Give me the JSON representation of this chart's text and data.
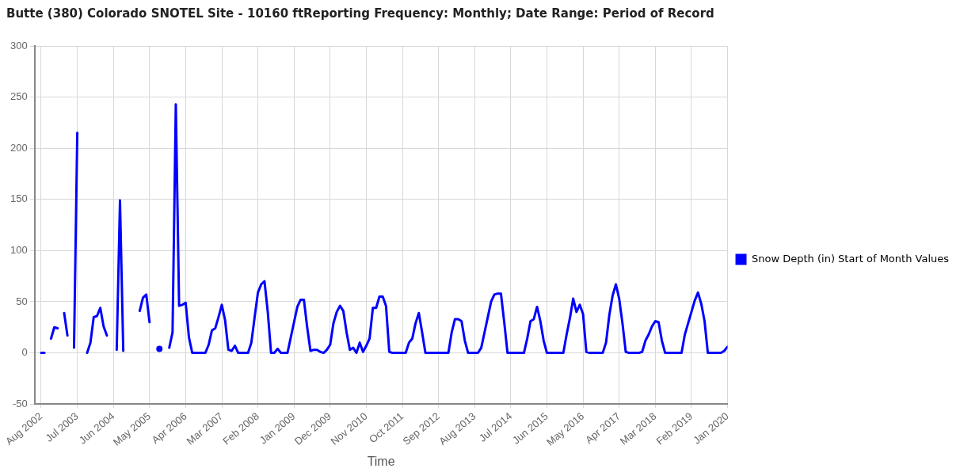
{
  "chart_data": {
    "type": "line",
    "title": "Butte (380) Colorado  SNOTEL Site - 10160 ftReporting Frequency: Monthly; Date Range: Period of Record",
    "xlabel": "Time",
    "categories": [
      "Aug 2002",
      null,
      null,
      null,
      null,
      null,
      null,
      null,
      null,
      null,
      null,
      "Jul 2003",
      null,
      null,
      null,
      null,
      null,
      null,
      null,
      null,
      null,
      null,
      "Jun 2004",
      null,
      null,
      null,
      null,
      null,
      null,
      null,
      null,
      null,
      null,
      "May 2005",
      null,
      null,
      null,
      null,
      null,
      null,
      null,
      null,
      null,
      null,
      "Apr 2006",
      null,
      null,
      null,
      null,
      null,
      null,
      null,
      null,
      null,
      null,
      "Mar 2007",
      null,
      null,
      null,
      null,
      null,
      null,
      null,
      null,
      null,
      null,
      "Feb 2008",
      null,
      null,
      null,
      null,
      null,
      null,
      null,
      null,
      null,
      null,
      "Jan 2009",
      null,
      null,
      null,
      null,
      null,
      null,
      null,
      null,
      null,
      null,
      "Dec 2009",
      null,
      null,
      null,
      null,
      null,
      null,
      null,
      null,
      null,
      null,
      "Nov 2010",
      null,
      null,
      null,
      null,
      null,
      null,
      null,
      null,
      null,
      null,
      "Oct 2011",
      null,
      null,
      null,
      null,
      null,
      null,
      null,
      null,
      null,
      null,
      "Sep 2012",
      null,
      null,
      null,
      null,
      null,
      null,
      null,
      null,
      null,
      null,
      "Aug 2013",
      null,
      null,
      null,
      null,
      null,
      null,
      null,
      null,
      null,
      null,
      "Jul 2014",
      null,
      null,
      null,
      null,
      null,
      null,
      null,
      null,
      null,
      null,
      "Jun 2015",
      null,
      null,
      null,
      null,
      null,
      null,
      null,
      null,
      null,
      null,
      "May 2016",
      null,
      null,
      null,
      null,
      null,
      null,
      null,
      null,
      null,
      null,
      "Apr 2017",
      null,
      null,
      null,
      null,
      null,
      null,
      null,
      null,
      null,
      null,
      "Mar 2018",
      null,
      null,
      null,
      null,
      null,
      null,
      null,
      null,
      null,
      null,
      "Feb 2019",
      null,
      null,
      null,
      null,
      null,
      null,
      null,
      null,
      null,
      null,
      "Jan 2020"
    ],
    "series": [
      {
        "name": "Snow Depth (in) Start of Month Values",
        "color": "#0000ff",
        "values": [
          0,
          0,
          null,
          14,
          25,
          24,
          null,
          39,
          17,
          null,
          5,
          215,
          null,
          null,
          0,
          10,
          35,
          36,
          44,
          26,
          17,
          null,
          null,
          3,
          149,
          2,
          null,
          null,
          null,
          null,
          41,
          54,
          57,
          30,
          null,
          null,
          4,
          null,
          null,
          5,
          20,
          243,
          46,
          47,
          49,
          15,
          0,
          0,
          0,
          0,
          0,
          8,
          22,
          24,
          35,
          47,
          32,
          3,
          2,
          7,
          0,
          0,
          0,
          0,
          10,
          35,
          59,
          67,
          70,
          40,
          0,
          0,
          4,
          0,
          0,
          0,
          15,
          30,
          45,
          52,
          52,
          25,
          2,
          3,
          3,
          1,
          0,
          3,
          8,
          29,
          40,
          46,
          41,
          20,
          3,
          5,
          0,
          10,
          1,
          7,
          14,
          44,
          44,
          55,
          55,
          46,
          1,
          0,
          0,
          0,
          0,
          0,
          10,
          14,
          29,
          39,
          20,
          0,
          0,
          0,
          0,
          0,
          0,
          0,
          0,
          20,
          33,
          33,
          31,
          12,
          0,
          0,
          0,
          0,
          5,
          20,
          35,
          50,
          57,
          58,
          58,
          30,
          0,
          0,
          0,
          0,
          0,
          0,
          14,
          31,
          33,
          45,
          31,
          12,
          0,
          0,
          0,
          0,
          0,
          0,
          18,
          34,
          53,
          40,
          47,
          38,
          1,
          0,
          0,
          0,
          0,
          0,
          10,
          37,
          56,
          67,
          53,
          29,
          1,
          0,
          0,
          0,
          0,
          1,
          12,
          18,
          26,
          31,
          30,
          12,
          0,
          0,
          0,
          0,
          0,
          0,
          18,
          29,
          40,
          51,
          59,
          48,
          31,
          0,
          0,
          0,
          0,
          0,
          2,
          6
        ]
      }
    ],
    "ylim": [
      -50,
      300
    ],
    "yticks": [
      -50,
      0,
      50,
      100,
      150,
      200,
      250,
      300
    ],
    "grid": true,
    "legend": "right",
    "marker": "none",
    "line_style": "solid"
  }
}
